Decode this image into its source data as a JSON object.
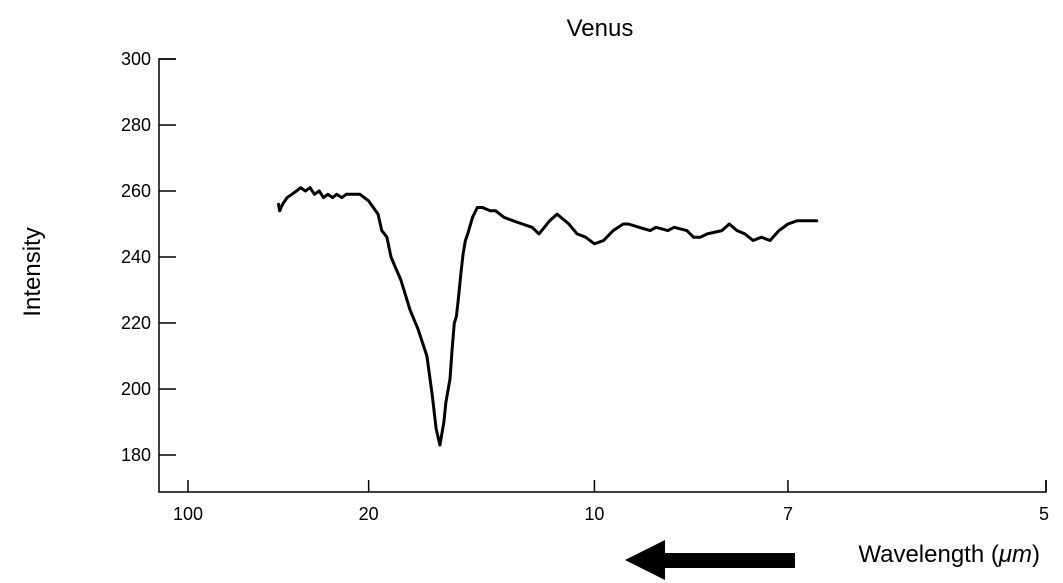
{
  "chart_data": {
    "type": "line",
    "title": "Venus",
    "xlabel_prefix": "Wavelength (",
    "xlabel_unit": "μm",
    "xlabel_suffix": ")",
    "ylabel": "Intensity",
    "x_scale": "reciprocal",
    "xlim": [
      100,
      5
    ],
    "ylim": [
      170,
      300
    ],
    "x_ticks": [
      100,
      20,
      10,
      7,
      5
    ],
    "x_tick_labels": [
      "100",
      "20",
      "10",
      "7",
      "5"
    ],
    "y_ticks": [
      180,
      200,
      220,
      240,
      260,
      280,
      300
    ],
    "y_tick_labels": [
      "180",
      "200",
      "220",
      "240",
      "260",
      "280",
      "300"
    ],
    "grid": false,
    "annotation": "arrow pointing left (toward longer wavelength)",
    "series": [
      {
        "x": [
          33.3,
          33,
          32.3,
          31.3,
          30.3,
          29.4,
          28.6,
          27.8,
          27,
          26.3,
          25.6,
          25,
          24.4,
          23.8,
          23.3,
          22.7,
          22.2,
          21.7,
          21.3,
          20.8,
          20.4,
          20,
          19.2,
          18.9,
          18.5,
          18.2,
          17.5,
          16.9,
          16.4,
          15.9,
          15.6,
          15.4,
          15.2,
          15.0,
          14.9,
          14.7,
          14.6,
          14.5,
          14.4,
          14.3,
          14.2,
          14.1,
          14.0,
          13.9,
          13.7,
          13.5,
          13.3,
          13.0,
          12.8,
          12.5,
          12.2,
          11.9,
          11.6,
          11.4,
          11.1,
          10.9,
          10.6,
          10.4,
          10.2,
          10.0,
          9.8,
          9.6,
          9.4,
          9.3,
          9.1,
          8.9,
          8.8,
          8.6,
          8.5,
          8.3,
          8.2,
          8.1,
          8.0,
          7.8,
          7.7,
          7.6,
          7.5,
          7.4,
          7.3,
          7.2,
          7.1,
          7.0,
          6.9,
          6.8,
          6.7
        ],
        "y": [
          256,
          254,
          256,
          258,
          259,
          260,
          261,
          260,
          261,
          259,
          260,
          258,
          259,
          258,
          259,
          258,
          259,
          259,
          259,
          259,
          258,
          257,
          253,
          248,
          246,
          240,
          233,
          224,
          218,
          210,
          198,
          188,
          183,
          190,
          196,
          203,
          212,
          220,
          222,
          228,
          235,
          241,
          245,
          247,
          252,
          255,
          255,
          254,
          254,
          252,
          251,
          250,
          249,
          247,
          251,
          253,
          250,
          247,
          246,
          244,
          245,
          248,
          250,
          250,
          249,
          248,
          249,
          248,
          249,
          248,
          246,
          246,
          247,
          248,
          250,
          248,
          247,
          245,
          246,
          245,
          248,
          250,
          251,
          251,
          251
        ]
      }
    ]
  }
}
